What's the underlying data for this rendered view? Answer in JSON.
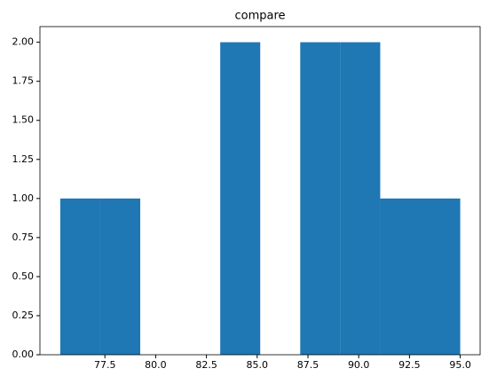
{
  "chart_data": {
    "type": "histogram",
    "title": "compare",
    "bins": [
      75.3,
      77.27,
      79.24,
      81.21,
      83.18,
      85.15,
      87.12,
      89.09,
      91.06,
      93.03,
      95.0
    ],
    "values": [
      1,
      1,
      0,
      0,
      2,
      0,
      2,
      2,
      1,
      1
    ],
    "color": "#1f77b4",
    "xlim": [
      74.3,
      95.98
    ],
    "xticks": [
      {
        "value": 77.5,
        "label": "77.5"
      },
      {
        "value": 80,
        "label": "80.0"
      },
      {
        "value": 82.5,
        "label": "82.5"
      },
      {
        "value": 85,
        "label": "85.0"
      },
      {
        "value": 87.5,
        "label": "87.5"
      },
      {
        "value": 90,
        "label": "90.0"
      },
      {
        "value": 92.5,
        "label": "92.5"
      },
      {
        "value": 95,
        "label": "95.0"
      }
    ],
    "ylim": [
      0,
      2.1
    ],
    "yticks": [
      {
        "value": 0,
        "label": "0.00"
      },
      {
        "value": 0.25,
        "label": "0.25"
      },
      {
        "value": 0.5,
        "label": "0.50"
      },
      {
        "value": 0.75,
        "label": "0.75"
      },
      {
        "value": 1,
        "label": "1.00"
      },
      {
        "value": 1.25,
        "label": "1.25"
      },
      {
        "value": 1.5,
        "label": "1.50"
      },
      {
        "value": 1.75,
        "label": "1.75"
      },
      {
        "value": 2,
        "label": "2.00"
      }
    ],
    "grid": false
  }
}
